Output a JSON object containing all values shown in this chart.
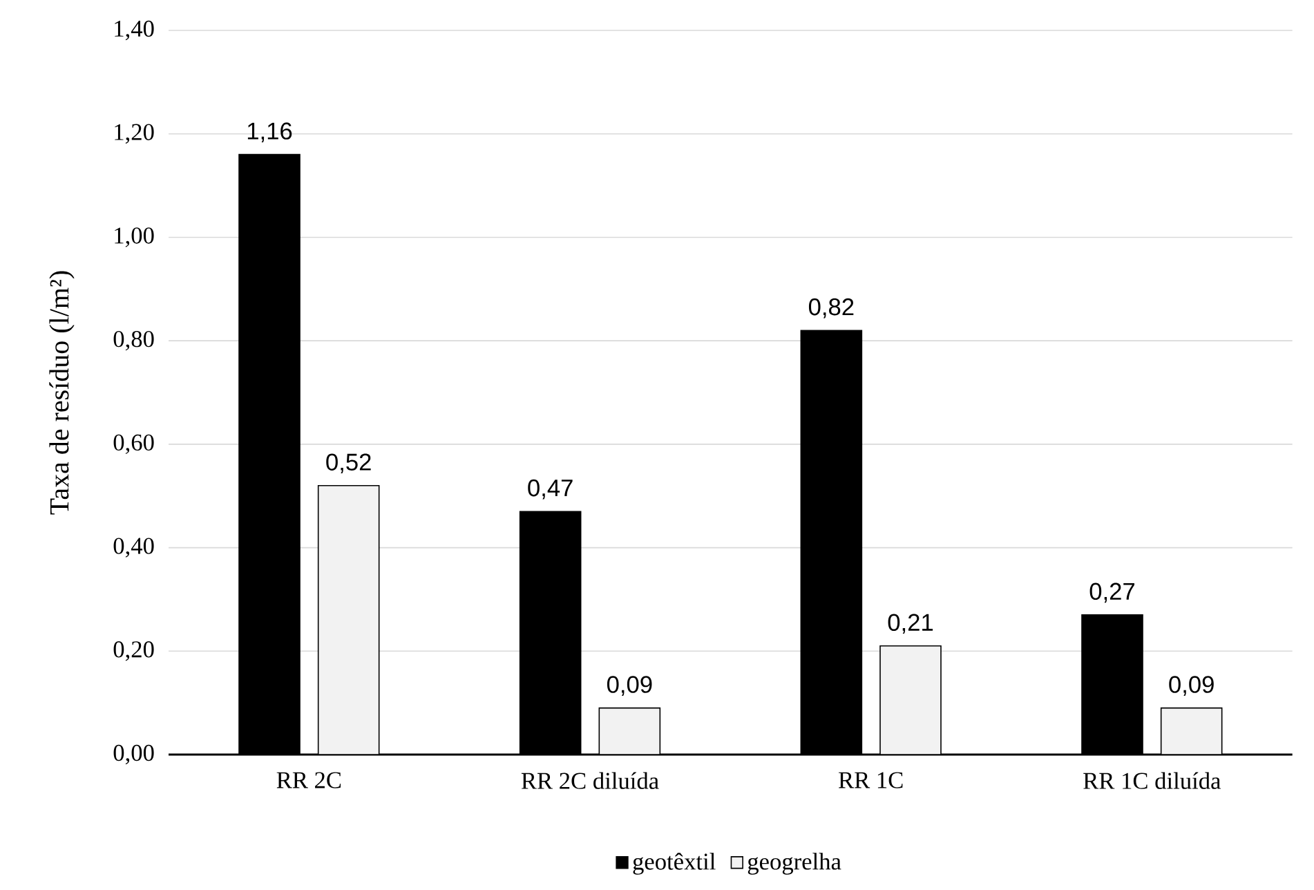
{
  "chart_data": {
    "type": "bar",
    "ylabel": "Taxa de resíduo (l/m²)",
    "categories": [
      "RR 2C",
      "RR 2C diluída",
      "RR 1C",
      "RR 1C diluída"
    ],
    "series": [
      {
        "name": "geotêxtil",
        "color": "#000000",
        "values": [
          1.16,
          0.47,
          0.82,
          0.27
        ],
        "value_labels": [
          "1,16",
          "0,47",
          "0,82",
          "0,27"
        ]
      },
      {
        "name": "geogrelha",
        "color": "#f2f2f2",
        "values": [
          0.52,
          0.09,
          0.21,
          0.09
        ],
        "value_labels": [
          "0,52",
          "0,09",
          "0,21",
          "0,09"
        ]
      }
    ],
    "ylim": [
      0,
      1.4
    ],
    "yticks": [
      {
        "value": 0,
        "label": "0,00"
      },
      {
        "value": 0.2,
        "label": "0,20"
      },
      {
        "value": 0.4,
        "label": "0,40"
      },
      {
        "value": 0.6,
        "label": "0,60"
      },
      {
        "value": 0.8,
        "label": "0,80"
      },
      {
        "value": 1.0,
        "label": "1,00"
      },
      {
        "value": 1.2,
        "label": "1,20"
      },
      {
        "value": 1.4,
        "label": "1,40"
      }
    ],
    "grid": "y",
    "legend": "bottom"
  }
}
